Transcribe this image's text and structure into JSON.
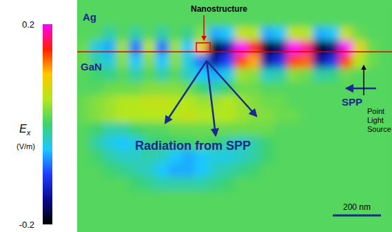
{
  "chart_data": {
    "type": "heatmap",
    "tick_labels": false,
    "colorbar": {
      "range": [
        -0.2,
        0.2
      ],
      "ticks": [
        0.2,
        -0.2
      ],
      "symbol": "E",
      "subscript": "x",
      "unit": "(V/m)"
    },
    "field": {
      "values": [
        [
          0.01,
          0.01,
          0.01,
          0.01,
          0.01,
          0.01,
          0.01,
          0.01,
          0.01,
          0.01,
          0.01,
          0.01,
          0.01,
          0.01,
          0.01,
          0.01,
          0.01,
          0.01,
          0.01,
          0.01,
          0.01,
          0.01,
          0.01,
          0.01
        ],
        [
          0.01,
          0.01,
          0.01,
          0.01,
          0.01,
          0.01,
          0.01,
          0.01,
          0.01,
          0.01,
          0.01,
          0.01,
          0.01,
          0.01,
          0.01,
          0.01,
          0.01,
          0.01,
          0.01,
          0.01,
          0.01,
          0.01,
          0.01,
          0.01
        ],
        [
          0.01,
          0.01,
          -0.02,
          0.01,
          -0.02,
          0.01,
          -0.02,
          0.01,
          -0.01,
          0.03,
          -0.06,
          -0.05,
          0.06,
          0.05,
          -0.06,
          -0.05,
          0.06,
          0.05,
          -0.06,
          -0.05,
          0.06,
          0.02,
          0.01,
          0.01
        ],
        [
          0.02,
          -0.04,
          -0.06,
          0.04,
          -0.08,
          0.05,
          -0.08,
          0.04,
          -0.05,
          0.1,
          -0.2,
          -0.14,
          0.2,
          0.16,
          -0.2,
          -0.16,
          0.2,
          0.18,
          -0.2,
          -0.16,
          0.2,
          0.08,
          0.02,
          0.01
        ],
        [
          0.02,
          -0.02,
          -0.04,
          0.03,
          -0.05,
          0.03,
          -0.05,
          0.03,
          -0.04,
          -0.08,
          -0.14,
          -0.1,
          0.14,
          0.11,
          -0.14,
          -0.11,
          0.14,
          0.13,
          -0.14,
          -0.11,
          0.14,
          0.05,
          0.02,
          0.01
        ],
        [
          0.01,
          0.0,
          -0.01,
          0.01,
          -0.02,
          0.01,
          -0.02,
          0.01,
          -0.03,
          -0.05,
          -0.06,
          -0.04,
          0.04,
          0.03,
          -0.03,
          -0.02,
          0.03,
          0.02,
          -0.02,
          -0.01,
          0.02,
          0.01,
          0.01,
          0.01
        ],
        [
          0.01,
          0.01,
          0.02,
          0.02,
          0.02,
          0.03,
          0.03,
          0.03,
          0.02,
          0.0,
          -0.02,
          0.0,
          0.02,
          0.02,
          0.01,
          0.01,
          0.01,
          0.01,
          0.01,
          0.01,
          0.01,
          0.01,
          0.01,
          0.01
        ],
        [
          0.02,
          0.03,
          0.04,
          0.05,
          0.05,
          0.06,
          0.06,
          0.05,
          0.05,
          0.04,
          0.04,
          0.05,
          0.04,
          0.03,
          0.02,
          0.02,
          0.01,
          0.01,
          0.01,
          0.01,
          0.01,
          0.01,
          0.01,
          0.01
        ],
        [
          0.02,
          0.03,
          0.04,
          0.05,
          0.05,
          0.05,
          0.05,
          0.05,
          0.06,
          0.05,
          0.05,
          0.05,
          0.04,
          0.03,
          0.03,
          0.02,
          0.02,
          0.01,
          0.01,
          0.01,
          0.01,
          0.01,
          0.01,
          0.01
        ],
        [
          0.01,
          0.0,
          -0.02,
          -0.02,
          0.0,
          0.01,
          0.01,
          0.02,
          0.02,
          0.02,
          0.02,
          0.02,
          0.02,
          0.02,
          0.02,
          0.01,
          0.01,
          0.01,
          0.01,
          0.01,
          0.01,
          0.01,
          0.01,
          0.01
        ],
        [
          0.01,
          -0.02,
          -0.04,
          -0.05,
          -0.04,
          -0.01,
          0.0,
          0.0,
          0.0,
          0.01,
          0.0,
          -0.02,
          -0.03,
          -0.02,
          0.0,
          0.01,
          0.01,
          0.01,
          0.01,
          0.01,
          0.01,
          0.01,
          0.01,
          0.01
        ],
        [
          0.01,
          0.0,
          -0.02,
          -0.03,
          -0.03,
          -0.02,
          -0.03,
          -0.05,
          -0.06,
          -0.05,
          -0.04,
          -0.04,
          -0.03,
          -0.02,
          0.0,
          0.01,
          0.01,
          0.01,
          0.01,
          0.01,
          0.01,
          0.01,
          0.01,
          0.01
        ],
        [
          0.01,
          0.01,
          0.0,
          -0.01,
          -0.02,
          -0.03,
          -0.05,
          -0.06,
          -0.06,
          -0.05,
          -0.03,
          -0.02,
          -0.01,
          0.0,
          0.01,
          0.01,
          0.01,
          0.01,
          0.01,
          0.01,
          0.01,
          0.01,
          0.01,
          0.01
        ],
        [
          0.01,
          0.01,
          0.01,
          0.01,
          0.0,
          -0.01,
          -0.02,
          -0.02,
          -0.02,
          -0.02,
          -0.01,
          0.0,
          0.01,
          0.01,
          0.01,
          0.01,
          0.01,
          0.01,
          0.01,
          0.01,
          0.01,
          0.01,
          0.01,
          0.01
        ],
        [
          0.01,
          0.01,
          0.01,
          0.01,
          0.01,
          0.01,
          0.01,
          0.01,
          0.01,
          0.01,
          0.01,
          0.01,
          0.01,
          0.01,
          0.01,
          0.01,
          0.01,
          0.01,
          0.01,
          0.01,
          0.01,
          0.01,
          0.01,
          0.01
        ],
        [
          0.01,
          0.01,
          0.01,
          0.01,
          0.01,
          0.01,
          0.01,
          0.01,
          0.01,
          0.01,
          0.01,
          0.01,
          0.01,
          0.01,
          0.01,
          0.01,
          0.01,
          0.01,
          0.01,
          0.01,
          0.01,
          0.01,
          0.01,
          0.01
        ],
        [
          0.01,
          0.01,
          0.01,
          0.01,
          0.01,
          0.01,
          0.01,
          0.01,
          0.01,
          0.01,
          0.01,
          0.01,
          0.01,
          0.01,
          0.01,
          0.01,
          0.01,
          0.01,
          0.01,
          0.01,
          0.01,
          0.01,
          0.01,
          0.01
        ]
      ]
    },
    "annotations": {
      "metal": "Ag",
      "substrate": "GaN",
      "nanostructure": "Nanostructure",
      "spp": "SPP",
      "radiation": "Radiation from SPP",
      "source": [
        "Point",
        "Light",
        "Source"
      ]
    },
    "scale_bar": {
      "value": 200,
      "label": "200 nm"
    }
  }
}
